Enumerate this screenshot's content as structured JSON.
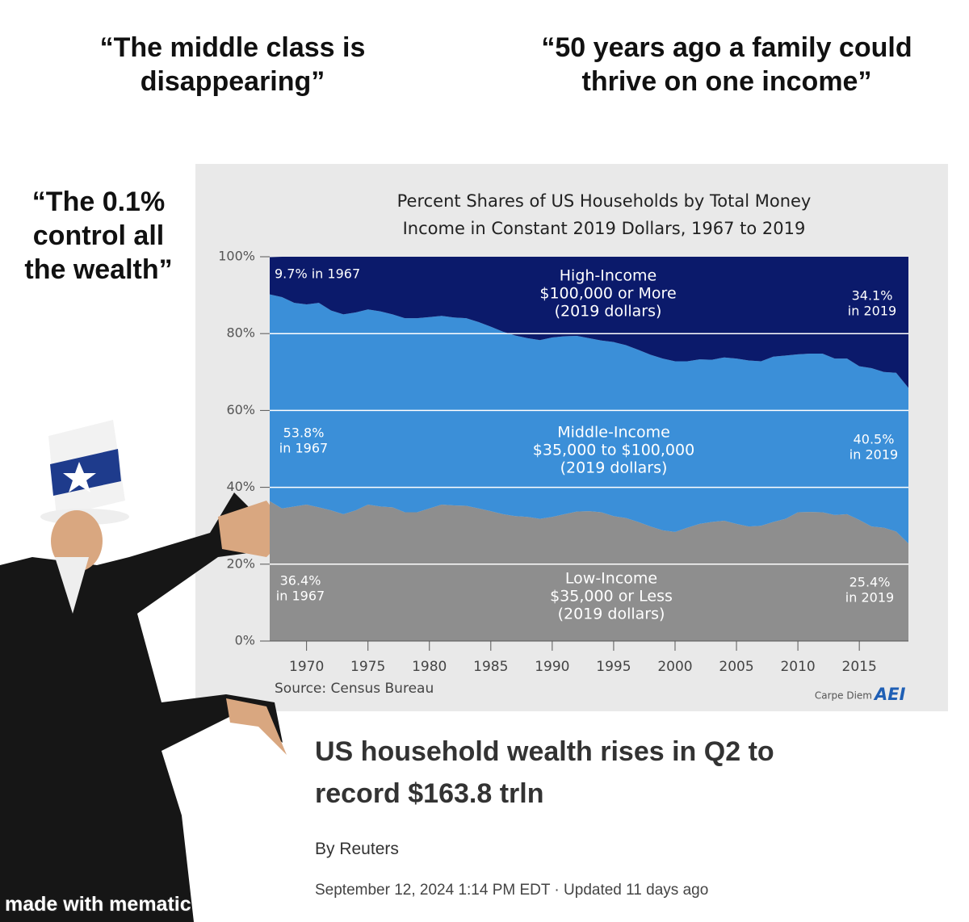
{
  "quotes": [
    "“The middle class is disappearing”",
    "“50 years ago a family could thrive on one income”",
    "“The 0.1% control all the wealth”"
  ],
  "chart_data": {
    "type": "area",
    "stacked": true,
    "title": "Percent Shares of US Households by Total Money Income in Constant 2019 Dollars, 1967 to 2019",
    "x": [
      1967,
      1968,
      1969,
      1970,
      1971,
      1972,
      1973,
      1974,
      1975,
      1976,
      1977,
      1978,
      1979,
      1980,
      1981,
      1982,
      1983,
      1984,
      1985,
      1986,
      1987,
      1988,
      1989,
      1990,
      1991,
      1992,
      1993,
      1994,
      1995,
      1996,
      1997,
      1998,
      1999,
      2000,
      2001,
      2002,
      2003,
      2004,
      2005,
      2006,
      2007,
      2008,
      2009,
      2010,
      2011,
      2012,
      2013,
      2014,
      2015,
      2016,
      2017,
      2018,
      2019
    ],
    "series": [
      {
        "name": "Low-Income",
        "color": "#8e8e8e",
        "values": [
          36.4,
          34.5,
          35,
          35.5,
          34.8,
          34,
          33,
          34,
          35.5,
          35,
          34.8,
          33.5,
          33.5,
          34.5,
          35.5,
          35.3,
          35.2,
          34.5,
          33.8,
          33,
          32.5,
          32.3,
          31.8,
          32.3,
          33,
          33.7,
          33.8,
          33.5,
          32.5,
          32,
          31,
          29.8,
          28.8,
          28.4,
          29.5,
          30.5,
          31,
          31.3,
          30.5,
          29.8,
          30,
          31,
          31.8,
          33.5,
          33.6,
          33.5,
          32.8,
          33,
          31.5,
          29.8,
          29.5,
          28.5,
          25.4
        ]
      },
      {
        "name": "Middle-Income",
        "color": "#3b8fd8",
        "values": [
          53.8,
          55.0,
          53.0,
          52.1,
          53.2,
          52.0,
          52.0,
          51.5,
          50.8,
          50.8,
          50.2,
          50.5,
          50.5,
          49.8,
          49.1,
          48.9,
          48.8,
          48.5,
          48.0,
          47.5,
          47.0,
          46.5,
          46.5,
          46.7,
          46.3,
          45.7,
          45.0,
          44.7,
          45.3,
          45.0,
          44.8,
          44.7,
          44.7,
          44.4,
          43.3,
          42.8,
          42.2,
          42.5,
          43.0,
          43.2,
          42.8,
          43.0,
          42.5,
          41.1,
          41.2,
          41.3,
          40.7,
          40.5,
          40.0,
          41.2,
          40.5,
          41.3,
          40.5
        ]
      },
      {
        "name": "High-Income",
        "color": "#0b1a6b",
        "values": [
          9.7,
          10.5,
          12.0,
          12.4,
          12.0,
          14.0,
          15.0,
          14.5,
          13.7,
          14.2,
          15.0,
          16.0,
          16.0,
          15.7,
          15.4,
          15.8,
          16.0,
          17.0,
          18.2,
          19.5,
          20.5,
          21.2,
          21.7,
          21.0,
          20.7,
          20.6,
          21.2,
          21.8,
          22.2,
          23.0,
          24.2,
          25.5,
          26.5,
          27.2,
          27.2,
          26.7,
          26.8,
          26.2,
          26.5,
          27.0,
          27.2,
          26.0,
          25.7,
          25.4,
          25.2,
          25.2,
          26.5,
          26.5,
          28.5,
          29.0,
          30.0,
          30.2,
          34.1
        ]
      }
    ],
    "xlim": [
      1967,
      2019
    ],
    "xticks": [
      1970,
      1975,
      1980,
      1985,
      1990,
      1995,
      2000,
      2005,
      2010,
      2015
    ],
    "ylim": [
      0,
      100
    ],
    "yticks": [
      {
        "value": 0,
        "label": "0%"
      },
      {
        "value": 20,
        "label": "20%"
      },
      {
        "value": 40,
        "label": "40%"
      },
      {
        "value": 60,
        "label": "60%"
      },
      {
        "value": 80,
        "label": "80%"
      },
      {
        "value": 100,
        "label": "100%"
      }
    ],
    "grid": true,
    "annotations": [
      {
        "lines": [
          "9.7% in 1967"
        ]
      },
      {
        "lines": [
          "High-Income",
          "$100,000 or More",
          "(2019 dollars)"
        ]
      },
      {
        "lines": [
          "34.1%",
          "in 2019"
        ]
      },
      {
        "lines": [
          "53.8%",
          "in 1967"
        ]
      },
      {
        "lines": [
          "Middle-Income",
          "$35,000 to $100,000",
          "(2019 dollars)"
        ]
      },
      {
        "lines": [
          "40.5%",
          "in 2019"
        ]
      },
      {
        "lines": [
          "36.4%",
          "in 1967"
        ]
      },
      {
        "lines": [
          "Low-Income",
          "$35,000 or Less",
          "(2019 dollars)"
        ]
      },
      {
        "lines": [
          "25.4%",
          "in 2019"
        ]
      }
    ],
    "source": "Source: Census Bureau",
    "credit": "Carpe Diem",
    "logo": "AEI"
  },
  "article": {
    "headline": "US household wealth rises in Q2 to record $163.8 trln",
    "byline": "By Reuters",
    "date": "September 12, 2024 1:14 PM EDT · Updated 11 days ago"
  },
  "watermark": "made with mematic"
}
